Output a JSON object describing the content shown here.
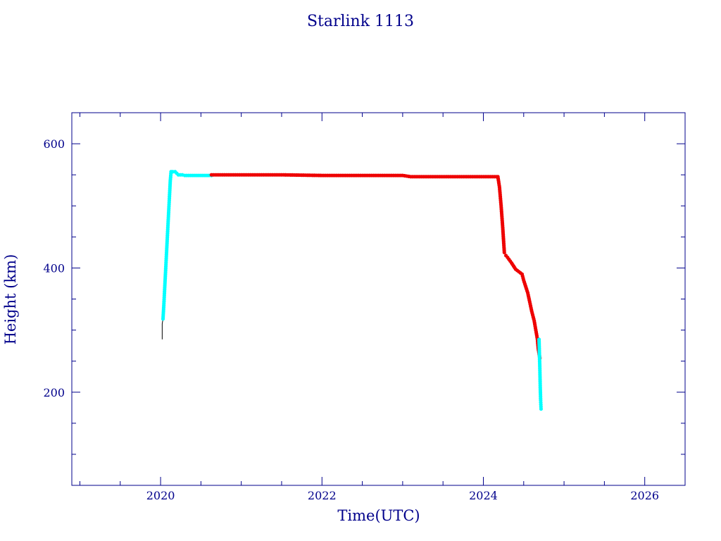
{
  "chart_data": {
    "type": "scatter",
    "title": "Starlink 1113",
    "xlabel": "Time(UTC)",
    "ylabel": "Height (km)",
    "xlim": [
      2018.9,
      2026.5
    ],
    "ylim": [
      50,
      650
    ],
    "xticks": [
      2020,
      2022,
      2024,
      2026
    ],
    "yticks": [
      200,
      400,
      600
    ],
    "grid": false,
    "colors": {
      "axes": "#00008b",
      "segment_cyan": "#00ffff",
      "segment_red": "#ee0000",
      "trace_line": "#000000"
    },
    "series": [
      {
        "color": "#00ffff",
        "x": [
          2020.03,
          2020.04,
          2020.05,
          2020.06,
          2020.07,
          2020.08,
          2020.09,
          2020.1,
          2020.11,
          2020.12,
          2020.13,
          2020.15,
          2020.18,
          2020.22,
          2020.27,
          2020.3,
          2020.4,
          2020.5,
          2020.6,
          2020.63
        ],
        "y": [
          318,
          340,
          365,
          390,
          415,
          440,
          465,
          490,
          515,
          540,
          555,
          555,
          555,
          550,
          550,
          549,
          549,
          549,
          549,
          549
        ]
      },
      {
        "color": "#ee0000",
        "x": [
          2020.63,
          2021.0,
          2021.5,
          2022.0,
          2022.5,
          2023.0,
          2023.1,
          2023.5,
          2024.0,
          2024.18,
          2024.2,
          2024.22,
          2024.24,
          2024.26,
          2024.28,
          2024.3,
          2024.35,
          2024.4,
          2024.48,
          2024.5,
          2024.55,
          2024.6,
          2024.63,
          2024.65,
          2024.67,
          2024.68,
          2024.7
        ],
        "y": [
          550,
          550,
          550,
          549,
          549,
          549,
          547,
          547,
          547,
          547,
          530,
          500,
          465,
          425,
          420,
          417,
          408,
          398,
          390,
          380,
          360,
          330,
          315,
          300,
          285,
          270,
          255
        ]
      },
      {
        "color": "#00ffff",
        "x": [
          2024.69,
          2024.7,
          2024.705,
          2024.71,
          2024.715
        ],
        "y": [
          285,
          238,
          208,
          187,
          173
        ]
      }
    ],
    "traces": [
      {
        "color": "#000000",
        "x": [
          2020.02,
          2020.02,
          2020.03
        ],
        "y": [
          285,
          310,
          318
        ]
      }
    ]
  }
}
